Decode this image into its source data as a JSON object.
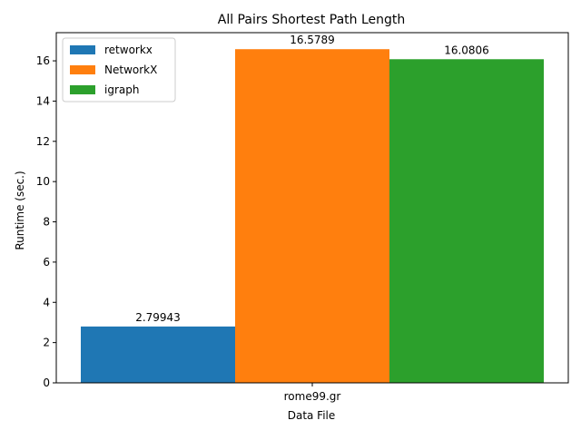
{
  "chart_data": {
    "type": "bar",
    "title": "All Pairs Shortest Path Length",
    "xlabel": "Data File",
    "ylabel": "Runtime (sec.)",
    "categories": [
      "rome99.gr"
    ],
    "series": [
      {
        "name": "retworkx",
        "values": [
          2.79943
        ],
        "label": "2.79943",
        "color": "#1f77b4"
      },
      {
        "name": "NetworkX",
        "values": [
          16.5789
        ],
        "label": "16.5789",
        "color": "#ff7f0e"
      },
      {
        "name": "igraph",
        "values": [
          16.0806
        ],
        "label": "16.0806",
        "color": "#2ca02c"
      }
    ],
    "ylim": [
      0,
      17.4
    ],
    "yticks": [
      0,
      2,
      4,
      6,
      8,
      10,
      12,
      14,
      16
    ],
    "grid": false,
    "legend_position": "top-left"
  }
}
